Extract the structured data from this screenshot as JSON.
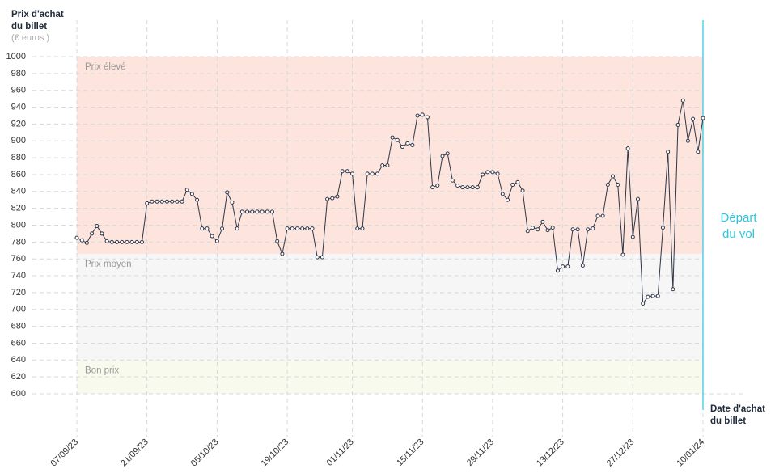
{
  "chart_data": {
    "type": "line",
    "y_label": [
      "Prix d'achat",
      "du billet"
    ],
    "y_unit": "(€ euros )",
    "x_label": [
      "Date d'achat",
      "du billet"
    ],
    "annotation": [
      "Départ",
      "du vol"
    ],
    "ylim": [
      600,
      1000
    ],
    "yticks": [
      600,
      620,
      640,
      660,
      680,
      700,
      720,
      740,
      760,
      780,
      800,
      820,
      840,
      860,
      880,
      900,
      920,
      940,
      960,
      980,
      1000
    ],
    "grid": true,
    "zones": [
      {
        "label": "Prix élevé",
        "from": 766,
        "to": 1000,
        "color": "#fde5de"
      },
      {
        "label": "Prix moyen",
        "from": 640,
        "to": 766,
        "color": "#f6f6f6"
      },
      {
        "label": "Bon prix",
        "from": 600,
        "to": 640,
        "color": "#f9faee"
      }
    ],
    "categories": [
      "07/09/23",
      null,
      null,
      null,
      null,
      null,
      null,
      null,
      null,
      null,
      null,
      null,
      null,
      null,
      "21/09/23",
      null,
      null,
      null,
      null,
      null,
      null,
      null,
      null,
      null,
      null,
      null,
      null,
      null,
      "05/10/23",
      null,
      null,
      null,
      null,
      null,
      null,
      null,
      null,
      null,
      null,
      null,
      null,
      null,
      "19/10/23",
      null,
      null,
      null,
      null,
      null,
      null,
      null,
      null,
      null,
      null,
      null,
      null,
      "01/11/23",
      null,
      null,
      null,
      null,
      null,
      null,
      null,
      null,
      null,
      null,
      null,
      null,
      null,
      "15/11/23",
      null,
      null,
      null,
      null,
      null,
      null,
      null,
      null,
      null,
      null,
      null,
      null,
      null,
      "29/11/23",
      null,
      null,
      null,
      null,
      null,
      null,
      null,
      null,
      null,
      null,
      null,
      null,
      null,
      "13/12/23",
      null,
      null,
      null,
      null,
      null,
      null,
      null,
      null,
      null,
      null,
      null,
      null,
      null,
      "27/12/23",
      null,
      null,
      null,
      null,
      null,
      null,
      null,
      null,
      null,
      null,
      null,
      null,
      null,
      "10/01/24"
    ],
    "series": [
      {
        "color": "#2e3648",
        "values": [
          785,
          782,
          779,
          790,
          799,
          790,
          781,
          780,
          780,
          780,
          780,
          780,
          780,
          780,
          826,
          828,
          828,
          828,
          828,
          828,
          828,
          828,
          842,
          837,
          830,
          796,
          796,
          787,
          781,
          796,
          839,
          827,
          796,
          816,
          816,
          816,
          816,
          816,
          816,
          816,
          781,
          766,
          796,
          796,
          796,
          796,
          796,
          796,
          762,
          762,
          831,
          832,
          834,
          864,
          864,
          861,
          796,
          796,
          861,
          861,
          861,
          871,
          871,
          904,
          901,
          893,
          897,
          895,
          930,
          931,
          928,
          845,
          847,
          882,
          885,
          853,
          847,
          845,
          845,
          845,
          845,
          860,
          863,
          863,
          861,
          837,
          830,
          848,
          851,
          841,
          793,
          797,
          795,
          804,
          794,
          797,
          746,
          751,
          751,
          795,
          795,
          752,
          795,
          796,
          811,
          811,
          848,
          858,
          848,
          765,
          891,
          786,
          831,
          707,
          715,
          716,
          716,
          797,
          887,
          724,
          919,
          948,
          900,
          926,
          887,
          927
        ]
      }
    ]
  }
}
